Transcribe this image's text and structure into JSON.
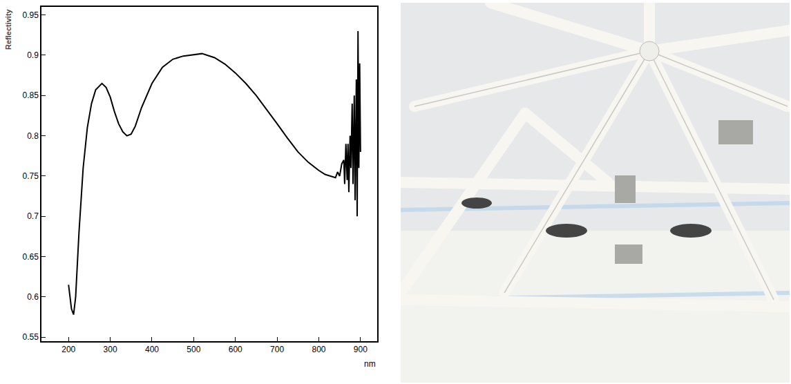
{
  "chart_data": {
    "type": "line",
    "xlabel": "nm",
    "ylabel": "Reflectivity",
    "color": "#000000",
    "grid": false,
    "xlim": [
      135,
      940
    ],
    "ylim": [
      0.545,
      0.96
    ],
    "xticks": [
      200,
      300,
      400,
      500,
      600,
      700,
      800,
      900
    ],
    "yticks": [
      0.55,
      0.6,
      0.65,
      0.7,
      0.75,
      0.8,
      0.85,
      0.9,
      0.95
    ],
    "x": [
      200,
      203,
      207,
      212,
      217,
      225,
      235,
      245,
      255,
      265,
      280,
      290,
      300,
      310,
      320,
      330,
      340,
      350,
      360,
      375,
      400,
      425,
      450,
      475,
      500,
      520,
      550,
      575,
      600,
      625,
      650,
      675,
      700,
      725,
      750,
      775,
      800,
      815,
      830,
      840,
      845,
      850,
      855,
      860,
      862,
      865,
      868,
      870,
      872,
      875,
      877,
      880,
      882,
      885,
      887,
      890,
      892,
      894,
      896,
      898,
      900
    ],
    "values": [
      0.615,
      0.6,
      0.585,
      0.578,
      0.6,
      0.68,
      0.76,
      0.81,
      0.84,
      0.857,
      0.865,
      0.86,
      0.848,
      0.83,
      0.815,
      0.805,
      0.8,
      0.802,
      0.812,
      0.835,
      0.865,
      0.885,
      0.895,
      0.899,
      0.901,
      0.902,
      0.897,
      0.889,
      0.878,
      0.865,
      0.85,
      0.833,
      0.815,
      0.797,
      0.78,
      0.767,
      0.757,
      0.752,
      0.75,
      0.748,
      0.755,
      0.75,
      0.765,
      0.77,
      0.74,
      0.79,
      0.745,
      0.79,
      0.73,
      0.8,
      0.76,
      0.84,
      0.74,
      0.85,
      0.72,
      0.87,
      0.7,
      0.93,
      0.76,
      0.89,
      0.78
    ]
  }
}
